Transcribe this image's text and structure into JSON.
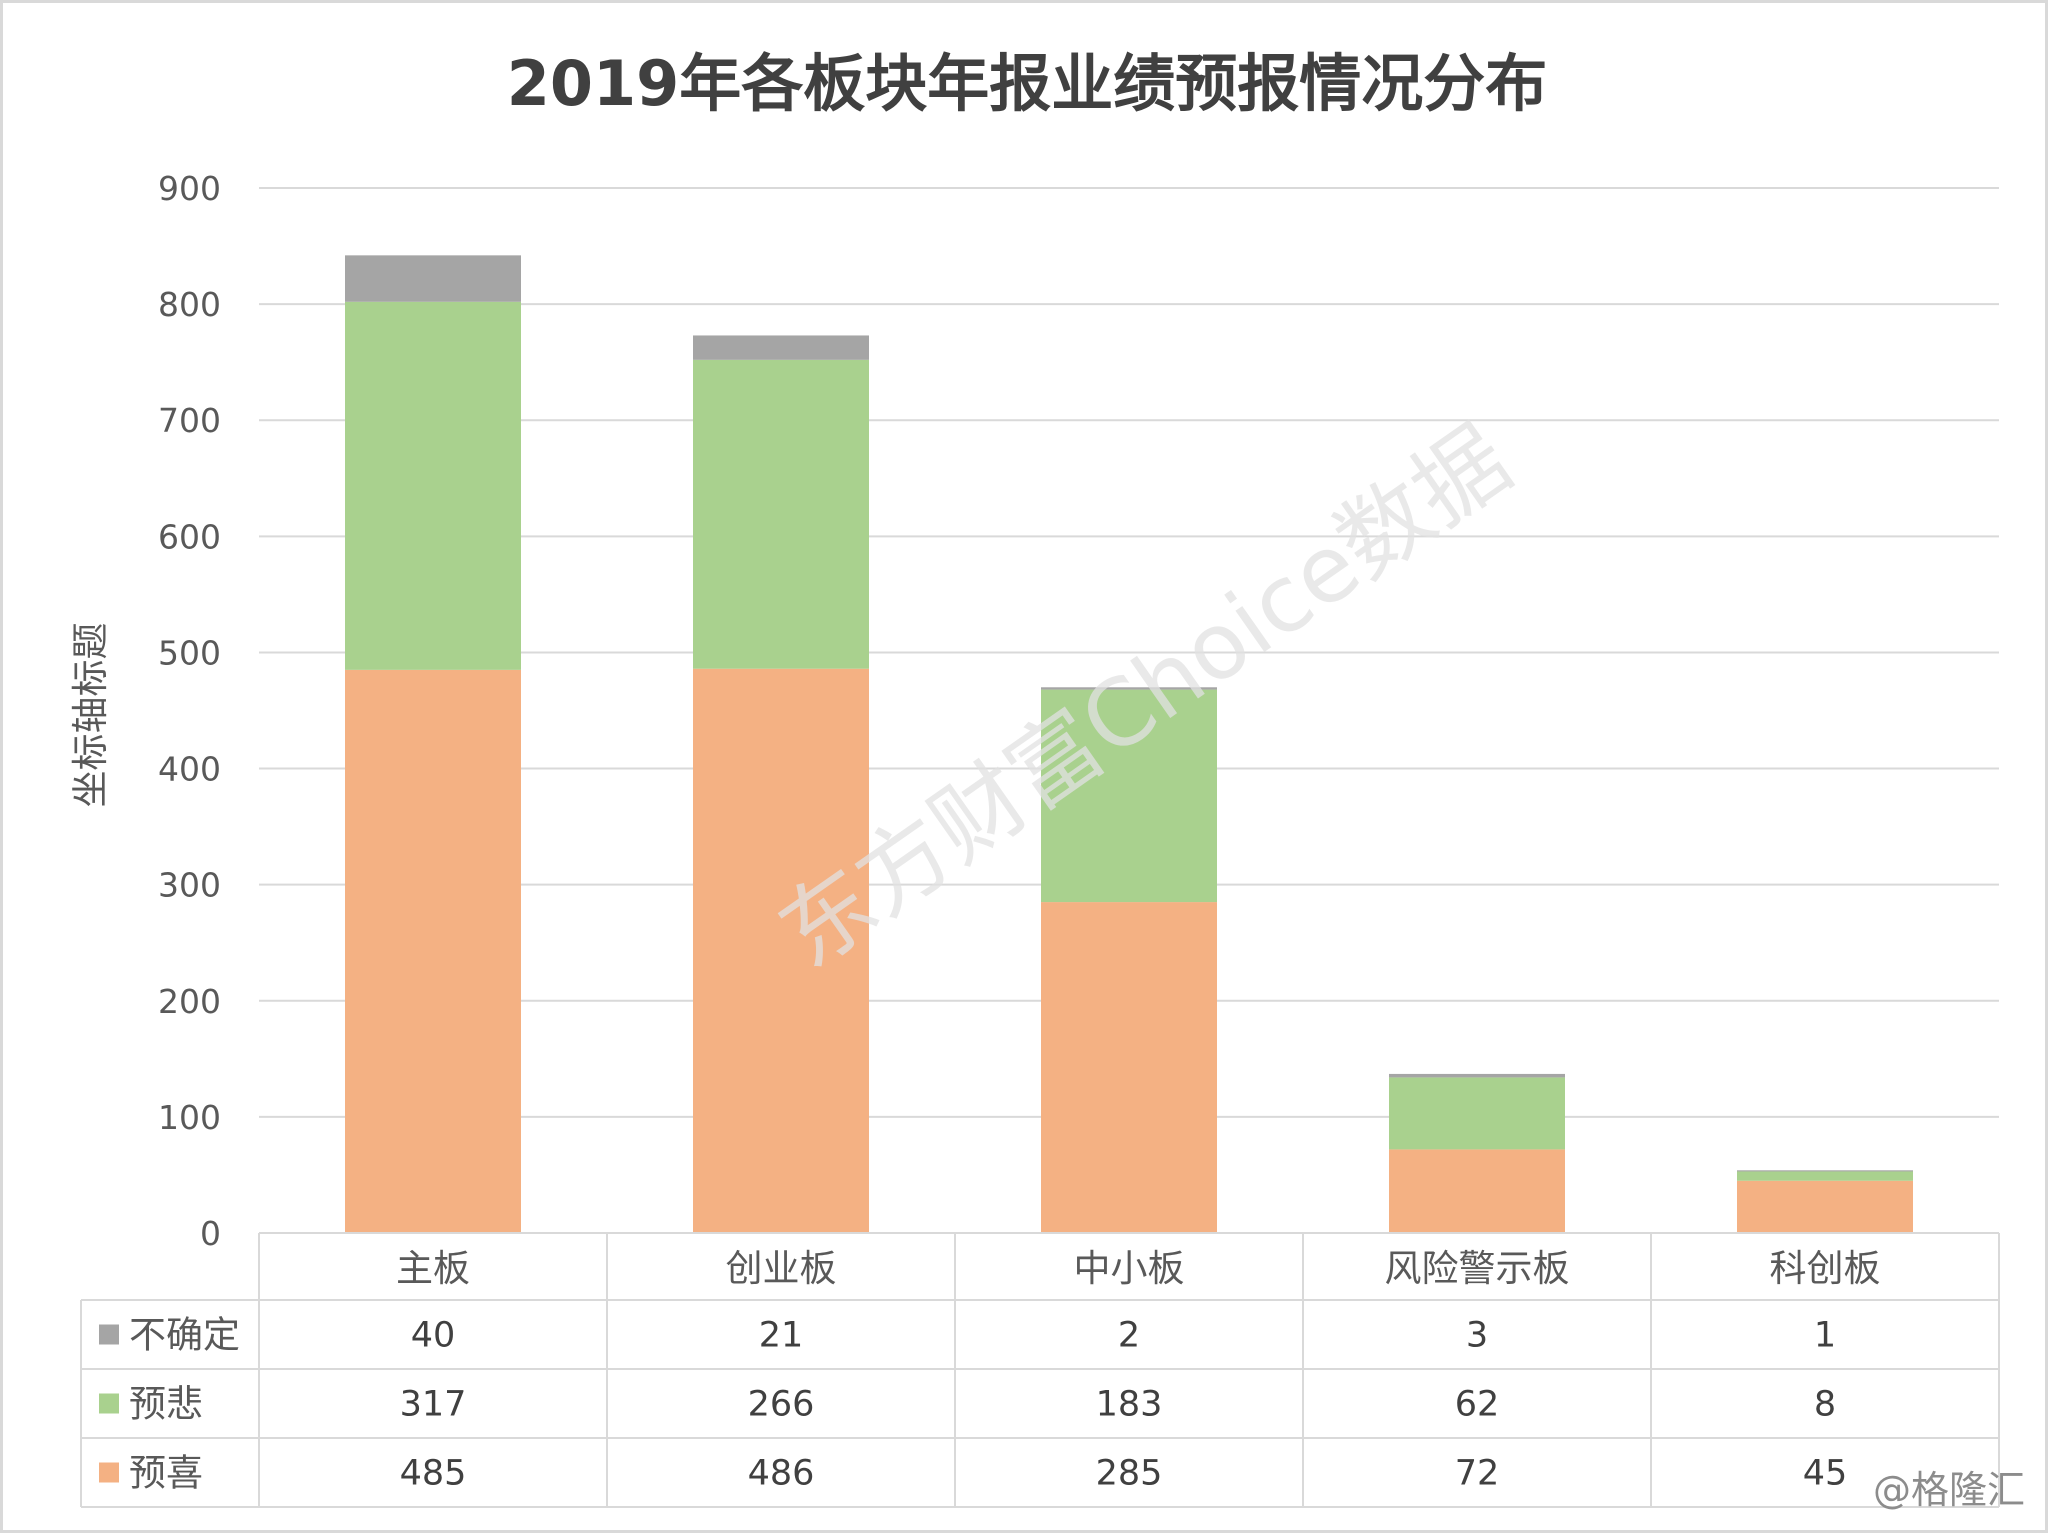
{
  "chart_data": {
    "type": "bar",
    "stacked": true,
    "title": "2019年各板块年报业绩预报情况分布",
    "ylabel": "坐标轴标题",
    "ylim": [
      0,
      900
    ],
    "yticks": [
      0,
      100,
      200,
      300,
      400,
      500,
      600,
      700,
      800,
      900
    ],
    "grid": true,
    "legend": "data-table-left",
    "categories": [
      "主板",
      "创业板",
      "中小板",
      "风险警示板",
      "科创板"
    ],
    "series": [
      {
        "name": "预喜",
        "color": "#f4b183",
        "values": [
          485,
          486,
          285,
          72,
          45
        ]
      },
      {
        "name": "预悲",
        "color": "#a9d18e",
        "values": [
          317,
          266,
          183,
          62,
          8
        ]
      },
      {
        "name": "不确定",
        "color": "#a5a5a5",
        "values": [
          40,
          21,
          2,
          3,
          1
        ]
      }
    ],
    "table_row_order": [
      "不确定",
      "预悲",
      "预喜"
    ]
  },
  "watermark": "东方财富Choice数据",
  "credit": "@格隆汇"
}
